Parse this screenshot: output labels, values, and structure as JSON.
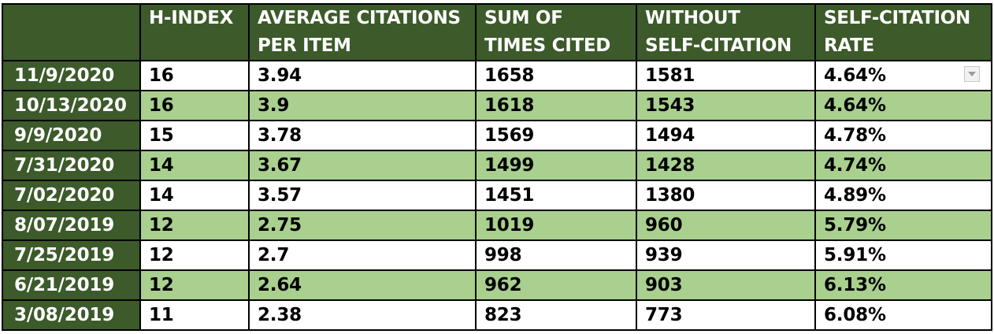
{
  "table": {
    "headers": [
      {
        "lines": [
          ""
        ]
      },
      {
        "lines": [
          "H-INDEX"
        ]
      },
      {
        "lines": [
          "AVERAGE CITATIONS",
          "PER ITEM"
        ]
      },
      {
        "lines": [
          "SUM OF",
          "TIMES CITED"
        ]
      },
      {
        "lines": [
          "WITHOUT",
          "SELF-CITATION"
        ]
      },
      {
        "lines": [
          "SELF-CITATION",
          "RATE"
        ]
      }
    ],
    "rows": [
      [
        "11/9/2020",
        "16",
        "3.94",
        "1658",
        "1581",
        "4.64%"
      ],
      [
        "10/13/2020",
        "16",
        "3.9",
        "1618",
        "1543",
        "4.64%"
      ],
      [
        "9/9/2020",
        "15",
        "3.78",
        "1569",
        "1494",
        "4.78%"
      ],
      [
        "7/31/2020",
        "14",
        "3.67",
        "1499",
        "1428",
        "4.74%"
      ],
      [
        "7/02/2020",
        "14",
        "3.57",
        "1451",
        "1380",
        "4.89%"
      ],
      [
        "8/07/2019",
        "12",
        "2.75",
        "1019",
        "960",
        "5.79%"
      ],
      [
        "7/25/2019",
        "12",
        "2.7",
        "998",
        "939",
        "5.91%"
      ],
      [
        "6/21/2019",
        "12",
        "2.64",
        "962",
        "903",
        "6.13%"
      ],
      [
        "3/08/2019",
        "11",
        "2.38",
        "823",
        "773",
        "6.08%"
      ]
    ]
  },
  "colors": {
    "header_bg": "#3c5a2a",
    "header_text": "#ffffff",
    "band_light": "#ffffff",
    "band_green": "#a9d08e",
    "grid": "#000000"
  },
  "icons": {
    "filter": "dropdown-arrow-icon"
  }
}
